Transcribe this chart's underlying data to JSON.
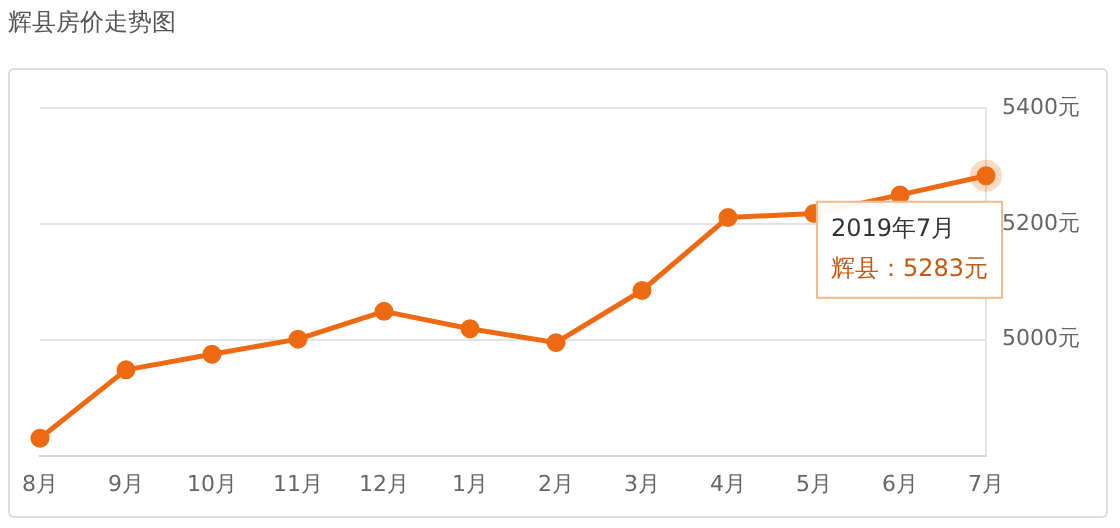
{
  "chart_data": {
    "type": "line",
    "title": "辉县房价走势图",
    "categories": [
      "8月",
      "9月",
      "10月",
      "11月",
      "12月",
      "1月",
      "2月",
      "3月",
      "4月",
      "5月",
      "6月",
      "7月"
    ],
    "series": [
      {
        "color": "#ee6a12",
        "values": [
          4830,
          4948,
          4975,
          5001,
          5049,
          5019,
          4995,
          5085,
          5211,
          5218,
          5250,
          5283
        ]
      }
    ],
    "ylim": [
      4800,
      5400
    ],
    "yticks": [
      {
        "value": 5000,
        "label": "5000元"
      },
      {
        "value": 5200,
        "label": "5200元"
      },
      {
        "value": 5400,
        "label": "5400元"
      }
    ],
    "grid": "y",
    "legend": false,
    "marker": "circle",
    "line_style": "solid",
    "annotations": [
      {
        "text": "2019年7月",
        "x": "7月",
        "y": 5283
      },
      "辉县：5283元"
    ]
  }
}
